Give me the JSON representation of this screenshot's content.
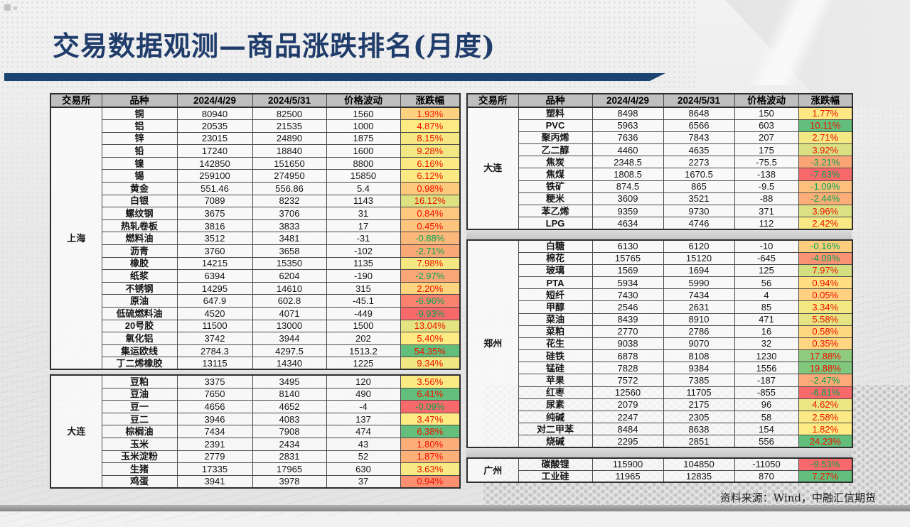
{
  "title": "交易数据观测—商品涨跌排名(月度)",
  "footer": {
    "source": "资料来源：Wind，中融汇信期货"
  },
  "columns": [
    "交易所",
    "品种",
    "2024/4/29",
    "2024/5/31",
    "价格波动",
    "涨跌幅"
  ],
  "colors": {
    "title_text": "#1F3C6B",
    "accent_bar": "#1C4370",
    "header_bg": "#BFBFBF",
    "scale_min": "#F8696B",
    "scale_mid": "#FFEB84",
    "scale_max": "#63BE7B",
    "positive_text": "#EE1100",
    "negative_text": "#00A550",
    "source_text": "#1A1A1A"
  },
  "tables": {
    "left": {
      "blocks": [
        {
          "exchange": "上海",
          "rows": [
            [
              "铜",
              "80940",
              "82500",
              "1560",
              "1.93%"
            ],
            [
              "铝",
              "20535",
              "21535",
              "1000",
              "4.87%"
            ],
            [
              "锌",
              "23015",
              "24890",
              "1875",
              "8.15%"
            ],
            [
              "铅",
              "17240",
              "18840",
              "1600",
              "9.28%"
            ],
            [
              "镍",
              "142850",
              "151650",
              "8800",
              "6.16%"
            ],
            [
              "锡",
              "259100",
              "274950",
              "15850",
              "6.12%"
            ],
            [
              "黄金",
              "551.46",
              "556.86",
              "5.4",
              "0.98%"
            ],
            [
              "白银",
              "7089",
              "8232",
              "1143",
              "16.12%"
            ],
            [
              "螺纹钢",
              "3675",
              "3706",
              "31",
              "0.84%"
            ],
            [
              "热轧卷板",
              "3816",
              "3833",
              "17",
              "0.45%"
            ],
            [
              "燃料油",
              "3512",
              "3481",
              "-31",
              "-0.88%"
            ],
            [
              "沥青",
              "3760",
              "3658",
              "-102",
              "-2.71%"
            ],
            [
              "橡胶",
              "14215",
              "15350",
              "1135",
              "7.98%"
            ],
            [
              "纸浆",
              "6394",
              "6204",
              "-190",
              "-2.97%"
            ],
            [
              "不锈钢",
              "14295",
              "14610",
              "315",
              "2.20%"
            ],
            [
              "原油",
              "647.9",
              "602.8",
              "-45.1",
              "-6.96%"
            ],
            [
              "低硫燃料油",
              "4520",
              "4071",
              "-449",
              "-9.93%"
            ],
            [
              "20号胶",
              "11500",
              "13000",
              "1500",
              "13.04%"
            ],
            [
              "氧化铝",
              "3742",
              "3944",
              "202",
              "5.40%"
            ],
            [
              "集运欧线",
              "2784.3",
              "4297.5",
              "1513.2",
              "54.35%"
            ],
            [
              "丁二烯橡胶",
              "13115",
              "14340",
              "1225",
              "9.34%"
            ]
          ]
        },
        {
          "exchange": "大连",
          "rows": [
            [
              "豆粕",
              "3375",
              "3495",
              "120",
              "3.56%"
            ],
            [
              "豆油",
              "7650",
              "8140",
              "490",
              "6.41%"
            ],
            [
              "豆一",
              "4656",
              "4652",
              "-4",
              "-0.09%"
            ],
            [
              "豆二",
              "3946",
              "4083",
              "137",
              "3.47%"
            ],
            [
              "棕榈油",
              "7434",
              "7908",
              "474",
              "6.38%"
            ],
            [
              "玉米",
              "2391",
              "2434",
              "43",
              "1.80%"
            ],
            [
              "玉米淀粉",
              "2779",
              "2831",
              "52",
              "1.87%"
            ],
            [
              "生猪",
              "17335",
              "17965",
              "630",
              "3.63%"
            ],
            [
              "鸡蛋",
              "3941",
              "3978",
              "37",
              "0.94%"
            ]
          ]
        }
      ]
    },
    "right": {
      "blocks": [
        {
          "exchange": "大连",
          "rows": [
            [
              "塑料",
              "8498",
              "8648",
              "150",
              "1.77%"
            ],
            [
              "PVC",
              "5963",
              "6566",
              "603",
              "10.11%"
            ],
            [
              "聚丙烯",
              "7636",
              "7843",
              "207",
              "2.71%"
            ],
            [
              "乙二醇",
              "4460",
              "4635",
              "175",
              "3.92%"
            ],
            [
              "焦炭",
              "2348.5",
              "2273",
              "-75.5",
              "-3.21%"
            ],
            [
              "焦煤",
              "1808.5",
              "1670.5",
              "-138",
              "-7.63%"
            ],
            [
              "铁矿",
              "874.5",
              "865",
              "-9.5",
              "-1.09%"
            ],
            [
              "粳米",
              "3609",
              "3521",
              "-88",
              "-2.44%"
            ],
            [
              "苯乙烯",
              "9359",
              "9730",
              "371",
              "3.96%"
            ],
            [
              "LPG",
              "4634",
              "4746",
              "112",
              "2.42%"
            ]
          ]
        },
        {
          "exchange": "郑州",
          "rows": [
            [
              "白糖",
              "6130",
              "6120",
              "-10",
              "-0.16%"
            ],
            [
              "棉花",
              "15765",
              "15120",
              "-645",
              "-4.09%"
            ],
            [
              "玻璃",
              "1569",
              "1694",
              "125",
              "7.97%"
            ],
            [
              "PTA",
              "5934",
              "5990",
              "56",
              "0.94%"
            ],
            [
              "短纤",
              "7430",
              "7434",
              "4",
              "0.05%"
            ],
            [
              "甲醇",
              "2546",
              "2631",
              "85",
              "3.34%"
            ],
            [
              "菜油",
              "8439",
              "8910",
              "471",
              "5.58%"
            ],
            [
              "菜粕",
              "2770",
              "2786",
              "16",
              "0.58%"
            ],
            [
              "花生",
              "9038",
              "9070",
              "32",
              "0.35%"
            ],
            [
              "硅铁",
              "6878",
              "8108",
              "1230",
              "17.88%"
            ],
            [
              "锰硅",
              "7828",
              "9384",
              "1556",
              "19.88%"
            ],
            [
              "苹果",
              "7572",
              "7385",
              "-187",
              "-2.47%"
            ],
            [
              "红枣",
              "12560",
              "11705",
              "-855",
              "-6.81%"
            ],
            [
              "尿素",
              "2079",
              "2175",
              "96",
              "4.62%"
            ],
            [
              "纯碱",
              "2247",
              "2305",
              "58",
              "2.58%"
            ],
            [
              "对二甲苯",
              "8484",
              "8638",
              "154",
              "1.82%"
            ],
            [
              "烧碱",
              "2295",
              "2851",
              "556",
              "24.23%"
            ]
          ]
        },
        {
          "exchange": "广州",
          "rows": [
            [
              "碳酸锂",
              "115900",
              "104850",
              "-11050",
              "-9.53%"
            ],
            [
              "工业硅",
              "11965",
              "12835",
              "870",
              "7.27%"
            ]
          ]
        }
      ]
    }
  }
}
